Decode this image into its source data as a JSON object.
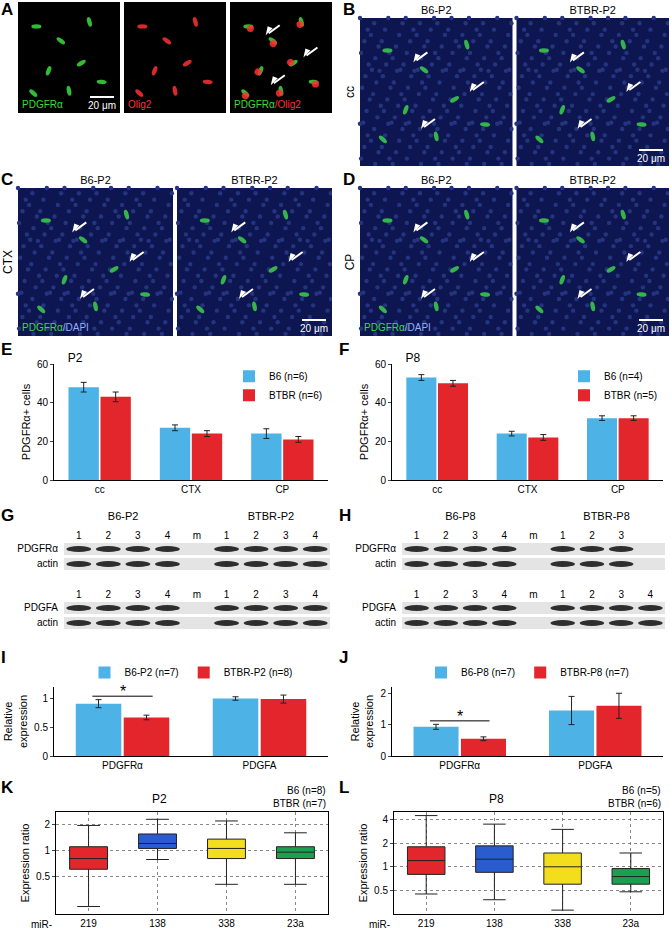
{
  "image_panels": [
    {
      "label": "A",
      "frames": [
        {
          "captions": [
            {
              "text": "PDGFRα",
              "color": "#3cdc3c"
            }
          ],
          "scale_bar": "20 μm"
        },
        {
          "captions": [
            {
              "text": "Olig2",
              "color": "#ff3030"
            }
          ]
        },
        {
          "captions": [
            {
              "text": "PDGFRα",
              "color": "#3cdc3c"
            },
            {
              "text": "/Olig2",
              "color": "#ff3030"
            }
          ]
        }
      ]
    },
    {
      "label": "B",
      "region": "cc",
      "frames": [
        {
          "title": "B6-P2"
        },
        {
          "title": "BTBR-P2",
          "scale_bar": "20 μm"
        }
      ]
    },
    {
      "label": "C",
      "region": "CTX",
      "frames": [
        {
          "title": "B6-P2",
          "captions": [
            {
              "text": "PDGFRα",
              "color": "#3cdc3c"
            },
            {
              "text": "/DAPI",
              "color": "#8fb0ff"
            }
          ]
        },
        {
          "title": "BTBR-P2",
          "scale_bar": "20 μm"
        }
      ]
    },
    {
      "label": "D",
      "region": "CP",
      "frames": [
        {
          "title": "B6-P2",
          "captions": [
            {
              "text": "PDGFRα",
              "color": "#3cdc3c"
            },
            {
              "text": "/DAPI",
              "color": "#8fb0ff"
            }
          ]
        },
        {
          "title": "BTBR-P2",
          "scale_bar": "20 μm"
        }
      ]
    }
  ],
  "blots": [
    {
      "label": "G",
      "groups": [
        "B6-P2",
        "BTBR-P2"
      ],
      "marker": "m",
      "blots": [
        {
          "lanes": [
            [
              "1",
              "2",
              "3",
              "4"
            ],
            [
              "1",
              "2",
              "3",
              "4"
            ]
          ],
          "bands": [
            "PDGFRα",
            "actin"
          ]
        },
        {
          "lanes": [
            [
              "1",
              "2",
              "3",
              "4"
            ],
            [
              "1",
              "2",
              "3",
              "4"
            ]
          ],
          "bands": [
            "PDGFA",
            "actin"
          ]
        }
      ]
    },
    {
      "label": "H",
      "groups": [
        "B6-P8",
        "BTBR-P8"
      ],
      "marker": "m",
      "blots": [
        {
          "lanes": [
            [
              "1",
              "2",
              "3",
              "4"
            ],
            [
              "1",
              "2",
              "3"
            ]
          ],
          "bands": [
            "PDGFRα",
            "actin"
          ]
        },
        {
          "lanes": [
            [
              "1",
              "2",
              "3",
              "4"
            ],
            [
              "1",
              "2",
              "3",
              "4"
            ]
          ],
          "bands": [
            "PDGFA",
            "actin"
          ]
        }
      ]
    }
  ],
  "chart_data": [
    {
      "type": "bar",
      "label": "E",
      "title": "P2",
      "ylabel": "PDGFRα+ cells",
      "categories": [
        "cc",
        "CTX",
        "CP"
      ],
      "series": [
        {
          "name": "B6 (n=6)",
          "color": "#4db3e6",
          "values": [
            48,
            27,
            24
          ],
          "errors": [
            2.5,
            1.5,
            2.5
          ]
        },
        {
          "name": "BTBR (n=6)",
          "color": "#e3262b",
          "values": [
            43,
            24,
            21
          ],
          "errors": [
            2.5,
            1.5,
            1.5
          ]
        }
      ],
      "ylim": [
        0,
        60
      ],
      "yticks": [
        0,
        20,
        40,
        60
      ],
      "grid": false,
      "legend": "top right"
    },
    {
      "type": "bar",
      "label": "F",
      "title": "P8",
      "ylabel": "PDGFRα+ cells",
      "categories": [
        "cc",
        "CTX",
        "CP"
      ],
      "series": [
        {
          "name": "B6 (n=4)",
          "color": "#4db3e6",
          "values": [
            53,
            24,
            32
          ],
          "errors": [
            1.5,
            1.2,
            1.2
          ]
        },
        {
          "name": "BTBR (n=5)",
          "color": "#e3262b",
          "values": [
            50,
            22,
            32
          ],
          "errors": [
            1.5,
            1.5,
            1.2
          ]
        }
      ],
      "ylim": [
        0,
        60
      ],
      "yticks": [
        0,
        20,
        40,
        60
      ],
      "grid": false,
      "legend": "top right"
    },
    {
      "type": "bar",
      "label": "I",
      "ylabel": "Relative\nexpression",
      "categories": [
        "PDGFRα",
        "PDGFA"
      ],
      "series": [
        {
          "name": "B6-P2 (n=7)",
          "color": "#4db3e6",
          "values": [
            0.91,
            1.0
          ],
          "errors": [
            0.07,
            0.03
          ]
        },
        {
          "name": "BTBR-P2 (n=8)",
          "color": "#e3262b",
          "values": [
            0.67,
            0.99
          ],
          "errors": [
            0.04,
            0.07
          ]
        }
      ],
      "ylim": [
        0,
        1.2
      ],
      "yticks": [
        0,
        0.5,
        1
      ],
      "grid": false,
      "legend": "top",
      "annotations": [
        {
          "text": "*",
          "category": "PDGFRα"
        }
      ]
    },
    {
      "type": "bar",
      "label": "J",
      "ylabel": "Relative\nexpression",
      "categories": [
        "PDGFRα",
        "PDGFA"
      ],
      "series": [
        {
          "name": "B6-P8 (n=7)",
          "color": "#4db3e6",
          "values": [
            0.93,
            1.45
          ],
          "errors": [
            0.08,
            0.45
          ]
        },
        {
          "name": "BTBR-P8 (n=7)",
          "color": "#e3262b",
          "values": [
            0.55,
            1.6
          ],
          "errors": [
            0.06,
            0.4
          ]
        }
      ],
      "ylim": [
        0,
        2.2
      ],
      "yticks": [
        0,
        1,
        2
      ],
      "grid": false,
      "legend": "top",
      "annotations": [
        {
          "text": "*",
          "category": "PDGFRα"
        }
      ]
    },
    {
      "type": "box",
      "label": "K",
      "title": "P2",
      "notes": [
        "B6 (n=8)",
        "BTBR (n=7)"
      ],
      "xlabel": "miR-",
      "ylabel": "Expression ratio",
      "categories": [
        "219",
        "138",
        "338",
        "23a"
      ],
      "boxes": [
        {
          "min": 0.22,
          "q1": 0.6,
          "median": 0.8,
          "q3": 1.1,
          "max": 1.95
        },
        {
          "min": 0.78,
          "q1": 1.05,
          "median": 1.2,
          "q3": 1.55,
          "max": 2.3
        },
        {
          "min": 0.4,
          "q1": 0.8,
          "median": 1.05,
          "q3": 1.35,
          "max": 2.2
        },
        {
          "min": 0.4,
          "q1": 0.8,
          "median": 0.95,
          "q3": 1.1,
          "max": 1.6
        }
      ],
      "colors": [
        "#e3262b",
        "#2a5cd0",
        "#f2de1c",
        "#1aa050"
      ],
      "log": "y",
      "ylim": [
        0.18,
        2.8
      ],
      "yticks": [
        0.5,
        1,
        2
      ],
      "grid": true
    },
    {
      "type": "box",
      "label": "L",
      "title": "P8",
      "notes": [
        "B6 (n=5)",
        "BTBR (n=6)"
      ],
      "xlabel": "miR-",
      "ylabel": "Expression ratio",
      "categories": [
        "219",
        "138",
        "338",
        "23a"
      ],
      "boxes": [
        {
          "min": 0.45,
          "q1": 0.8,
          "median": 1.2,
          "q3": 1.8,
          "max": 4.5
        },
        {
          "min": 0.38,
          "q1": 0.85,
          "median": 1.25,
          "q3": 1.85,
          "max": 3.5
        },
        {
          "min": 0.28,
          "q1": 0.6,
          "median": 1.0,
          "q3": 1.5,
          "max": 3.0
        },
        {
          "min": 0.48,
          "q1": 0.6,
          "median": 0.75,
          "q3": 0.95,
          "max": 1.5
        }
      ],
      "colors": [
        "#e3262b",
        "#2a5cd0",
        "#f2de1c",
        "#1aa050"
      ],
      "log": "y",
      "ylim": [
        0.25,
        5
      ],
      "yticks": [
        0.5,
        1,
        2,
        4
      ],
      "grid": true
    }
  ]
}
